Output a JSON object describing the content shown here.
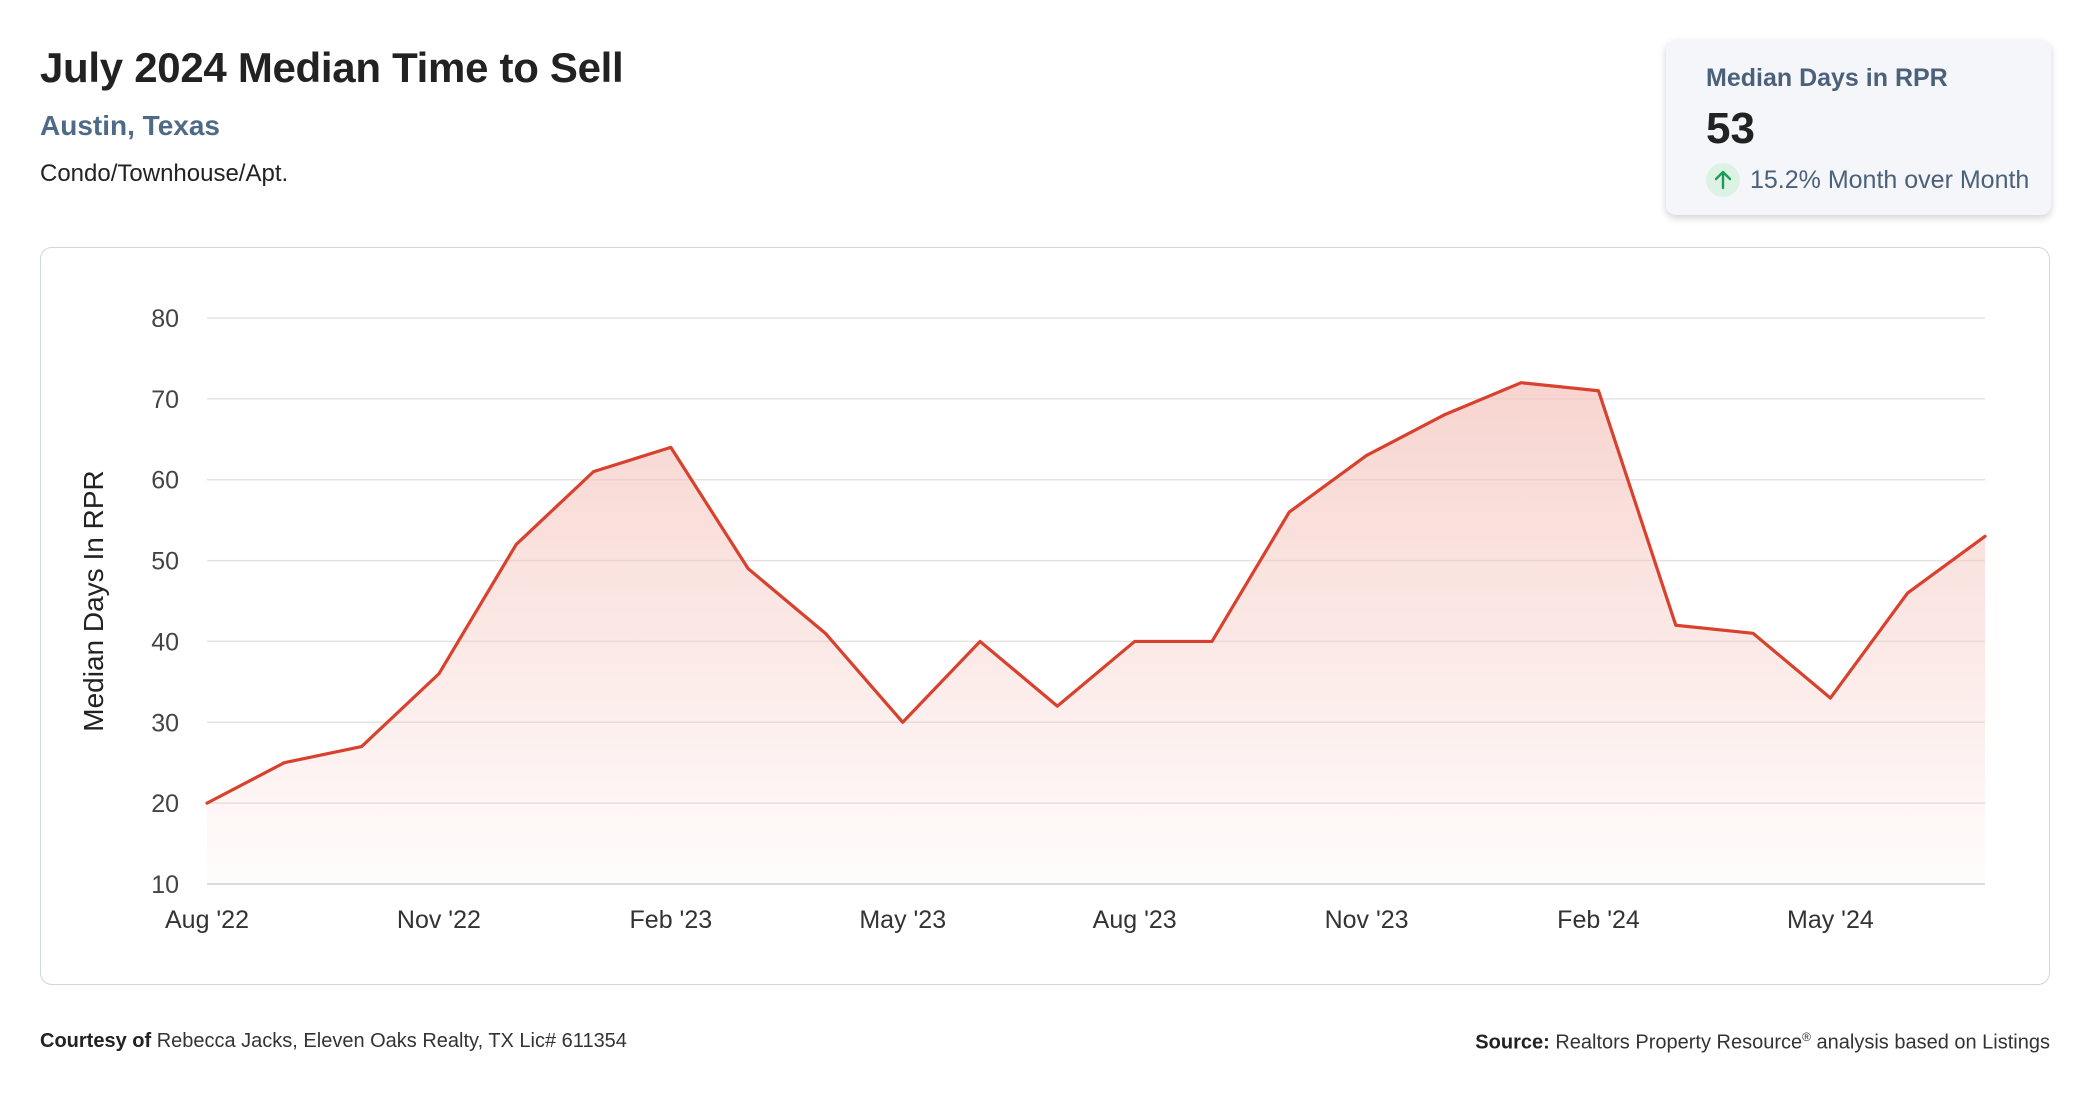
{
  "header": {
    "title": "July 2024 Median Time to Sell",
    "location": "Austin, Texas",
    "property_type": "Condo/Townhouse/Apt."
  },
  "kpi": {
    "label": "Median Days in RPR",
    "value": "53",
    "change": "15.2% Month over Month",
    "direction_icon": "arrow-up-icon",
    "change_color": "#1e9c57"
  },
  "colors": {
    "line": "#d9412f",
    "fill_top": "#f5c6bf",
    "grid": "#e3e3e3"
  },
  "chart_data": {
    "type": "area",
    "ylabel": "Median Days In RPR",
    "xlabel": "",
    "ylim": [
      10,
      80
    ],
    "yticks": [
      10,
      20,
      30,
      40,
      50,
      60,
      70,
      80
    ],
    "x": [
      "Aug '22",
      "Sep '22",
      "Oct '22",
      "Nov '22",
      "Dec '22",
      "Jan '23",
      "Feb '23",
      "Mar '23",
      "Apr '23",
      "May '23",
      "Jun '23",
      "Jul '23",
      "Aug '23",
      "Sep '23",
      "Oct '23",
      "Nov '23",
      "Dec '23",
      "Jan '24",
      "Feb '24",
      "Mar '24",
      "Apr '24",
      "May '24",
      "Jun '24",
      "Jul '24"
    ],
    "xtick_labels": [
      "Aug '22",
      "Nov '22",
      "Feb '23",
      "May '23",
      "Aug '23",
      "Nov '23",
      "Feb '24",
      "May '24"
    ],
    "series": [
      {
        "values": [
          20,
          25,
          27,
          36,
          52,
          61,
          64,
          49,
          41,
          30,
          40,
          32,
          40,
          40,
          56,
          63,
          68,
          72,
          71,
          42,
          41,
          33,
          46,
          53
        ]
      }
    ],
    "grid": true,
    "legend": "none"
  },
  "footer": {
    "courtesy_label": "Courtesy of",
    "courtesy_text": "Rebecca Jacks, Eleven Oaks Realty, TX Lic# 611354",
    "source_label": "Source:",
    "source_text_1": "Realtors Property Resource",
    "source_reg": "®",
    "source_text_2": " analysis based on Listings"
  }
}
